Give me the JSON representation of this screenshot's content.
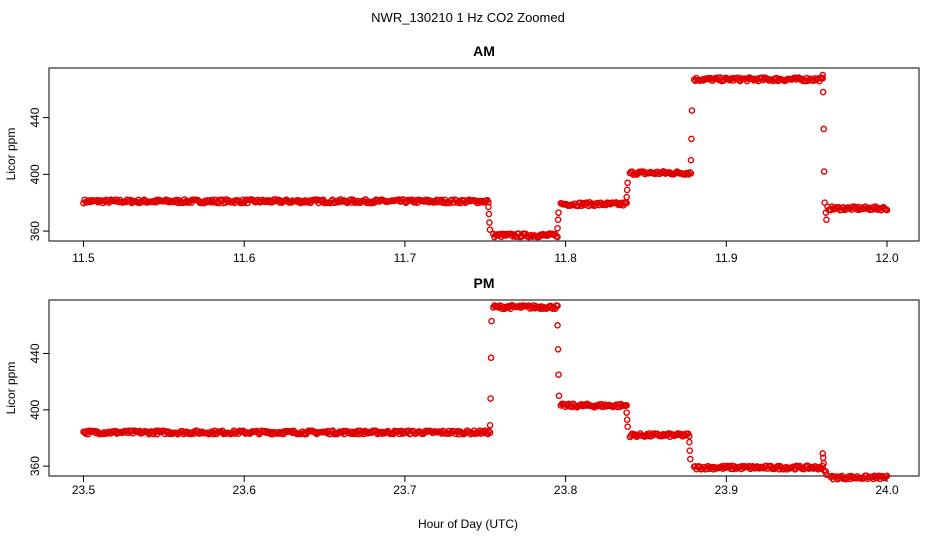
{
  "figure": {
    "title": "NWR_130210  1 Hz CO2 Zoomed",
    "xlabel": "Hour of Day (UTC)"
  },
  "chart_data": [
    {
      "type": "scatter",
      "title": "AM",
      "xlabel": "Hour of Day (UTC)",
      "ylabel": "Licor ppm",
      "xlim": [
        11.5,
        12.0
      ],
      "ylim": [
        353,
        475
      ],
      "x_ticks": [
        "11.5",
        "11.6",
        "11.7",
        "11.8",
        "11.9",
        "12.0"
      ],
      "y_ticks": [
        "360",
        "400",
        "440"
      ],
      "color": "#e00000",
      "marker": "open-circle",
      "levels": [
        {
          "x_start": 11.5,
          "x_end": 11.752,
          "y": 381
        },
        {
          "x_start": 11.755,
          "x_end": 11.795,
          "y": 357
        },
        {
          "x_start": 11.797,
          "x_end": 11.838,
          "y": 379
        },
        {
          "x_start": 11.84,
          "x_end": 11.878,
          "y": 401
        },
        {
          "x_start": 11.88,
          "x_end": 11.96,
          "y": 467
        },
        {
          "x_start": 11.963,
          "x_end": 12.0,
          "y": 376
        }
      ],
      "transitions": [
        {
          "x": 11.752,
          "y": [
            377,
            372,
            366,
            361
          ]
        },
        {
          "x": 11.795,
          "y": [
            362,
            368,
            373
          ]
        },
        {
          "x": 11.838,
          "y": [
            384,
            389,
            394
          ]
        },
        {
          "x": 11.878,
          "y": [
            410,
            425,
            445
          ]
        },
        {
          "x": 11.96,
          "y": [
            470,
            458,
            432,
            402,
            380
          ]
        },
        {
          "x": 11.962,
          "y": [
            373,
            368
          ]
        }
      ]
    },
    {
      "type": "scatter",
      "title": "PM",
      "xlabel": "Hour of Day (UTC)",
      "ylabel": "Licor ppm",
      "xlim": [
        23.5,
        24.0
      ],
      "ylim": [
        353,
        478
      ],
      "x_ticks": [
        "23.5",
        "23.6",
        "23.7",
        "23.8",
        "23.9",
        "24.0"
      ],
      "y_ticks": [
        "360",
        "400",
        "440"
      ],
      "color": "#e00000",
      "marker": "open-circle",
      "levels": [
        {
          "x_start": 23.5,
          "x_end": 23.753,
          "y": 384
        },
        {
          "x_start": 23.755,
          "x_end": 23.795,
          "y": 473
        },
        {
          "x_start": 23.797,
          "x_end": 23.838,
          "y": 403
        },
        {
          "x_start": 23.84,
          "x_end": 23.877,
          "y": 382
        },
        {
          "x_start": 23.88,
          "x_end": 23.96,
          "y": 359
        },
        {
          "x_start": 23.965,
          "x_end": 24.0,
          "y": 352
        }
      ],
      "transitions": [
        {
          "x": 23.753,
          "y": [
            389,
            408,
            437,
            463
          ]
        },
        {
          "x": 23.795,
          "y": [
            460,
            443,
            425,
            410
          ]
        },
        {
          "x": 23.838,
          "y": [
            398,
            393,
            388
          ]
        },
        {
          "x": 23.877,
          "y": [
            377,
            371,
            365
          ]
        },
        {
          "x": 23.96,
          "y": [
            369,
            366,
            362,
            357
          ]
        },
        {
          "x": 23.962,
          "y": [
            356,
            354
          ]
        }
      ]
    }
  ]
}
